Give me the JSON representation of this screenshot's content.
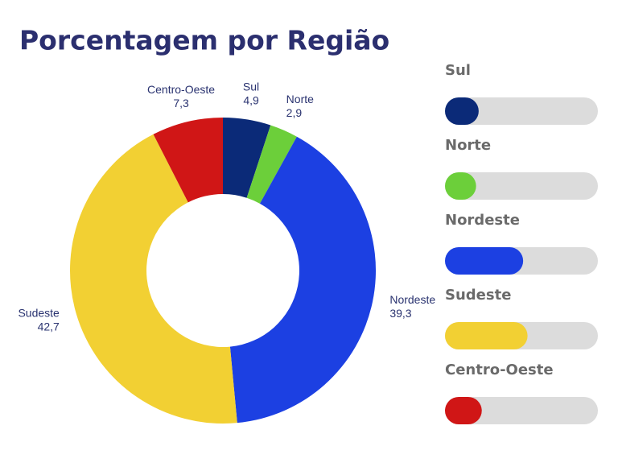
{
  "chart_data": {
    "type": "donut",
    "title": "Porcentagem por Região",
    "categories": [
      "Sul",
      "Norte",
      "Nordeste",
      "Sudeste",
      "Centro-Oeste"
    ],
    "values": [
      4.9,
      2.9,
      39.3,
      42.7,
      7.3
    ],
    "value_labels": [
      "4,9",
      "2,9",
      "39,3",
      "42,7",
      "7,3"
    ],
    "colors": [
      "#0b2a78",
      "#6ccf3a",
      "#1c40e2",
      "#f2d033",
      "#d01616"
    ]
  }
}
